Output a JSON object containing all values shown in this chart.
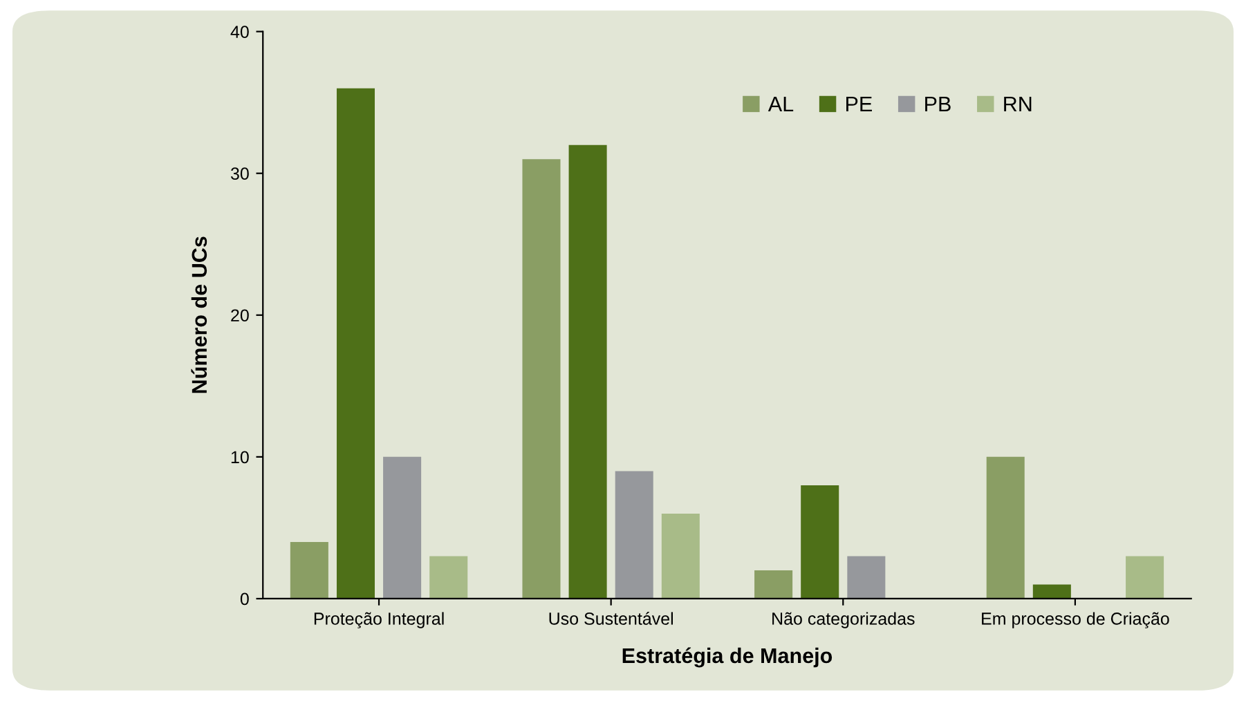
{
  "chart_data": {
    "type": "bar",
    "xlabel": "Estratégia de Manejo",
    "ylabel": "Número de UCs",
    "categories": [
      "Proteção Integral",
      "Uso Sustentável",
      "Não categorizadas",
      "Em processo de Criação"
    ],
    "series": [
      {
        "name": "AL",
        "color": "#8a9e64",
        "values": [
          4,
          31,
          2,
          10
        ]
      },
      {
        "name": "PE",
        "color": "#4e7018",
        "values": [
          36,
          32,
          8,
          1
        ]
      },
      {
        "name": "PB",
        "color": "#96989c",
        "values": [
          10,
          9,
          3,
          0
        ]
      },
      {
        "name": "RN",
        "color": "#a8bb88",
        "values": [
          3,
          6,
          0,
          3
        ]
      }
    ],
    "ylim": [
      0,
      40
    ],
    "yticks": [
      0,
      10,
      20,
      30,
      40
    ],
    "grid": false,
    "legend": "top right"
  }
}
